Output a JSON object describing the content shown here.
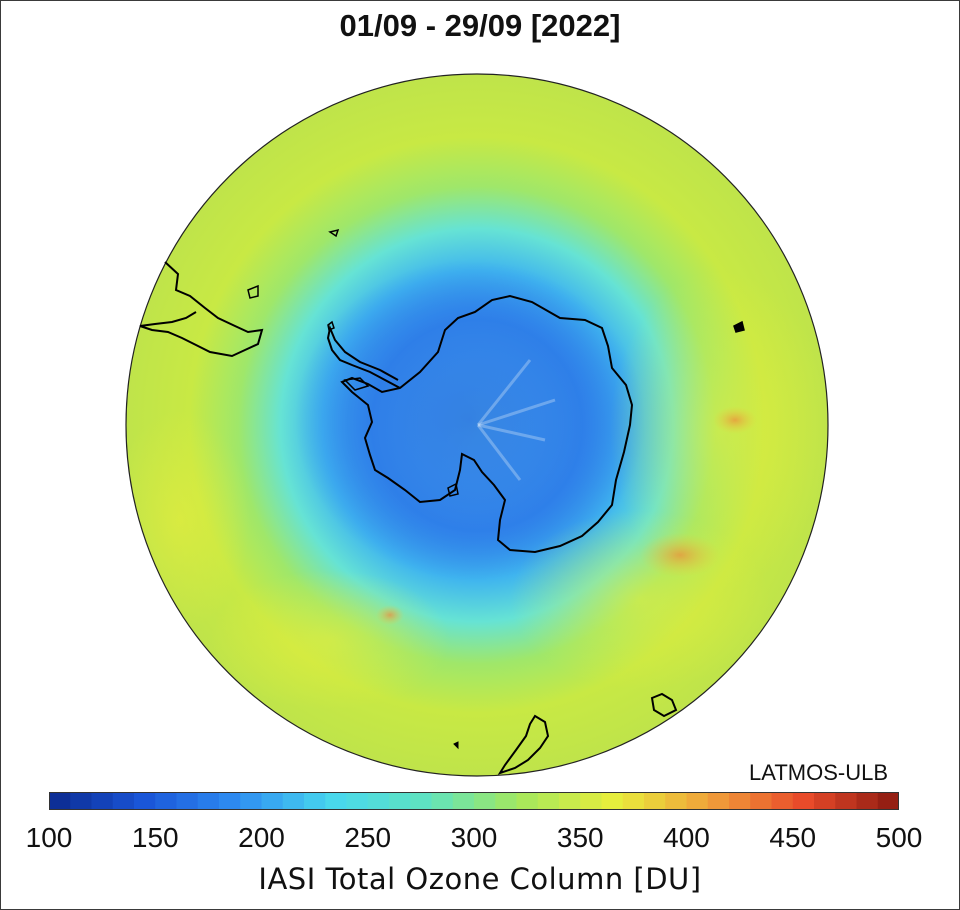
{
  "title": "01/09 - 29/09 [2022]",
  "credit": "LATMOS-ULB",
  "colorbar": {
    "label": "IASI Total Ozone Column [DU]",
    "min": 100,
    "max": 500,
    "ticks": [
      "100",
      "150",
      "200",
      "250",
      "300",
      "350",
      "400",
      "450",
      "500"
    ],
    "colormap": [
      "#0b2a8f",
      "#1a55d8",
      "#2f8ef2",
      "#48d8ee",
      "#5fe3c0",
      "#a6e85c",
      "#e8ee3c",
      "#f0a03a",
      "#e84a2a",
      "#8a1a10"
    ]
  },
  "map": {
    "projection": "south-polar-stereographic",
    "region": "Antarctica",
    "palette": {
      "ocean_background": "#b9e24a",
      "coastline": "#000000"
    }
  }
}
